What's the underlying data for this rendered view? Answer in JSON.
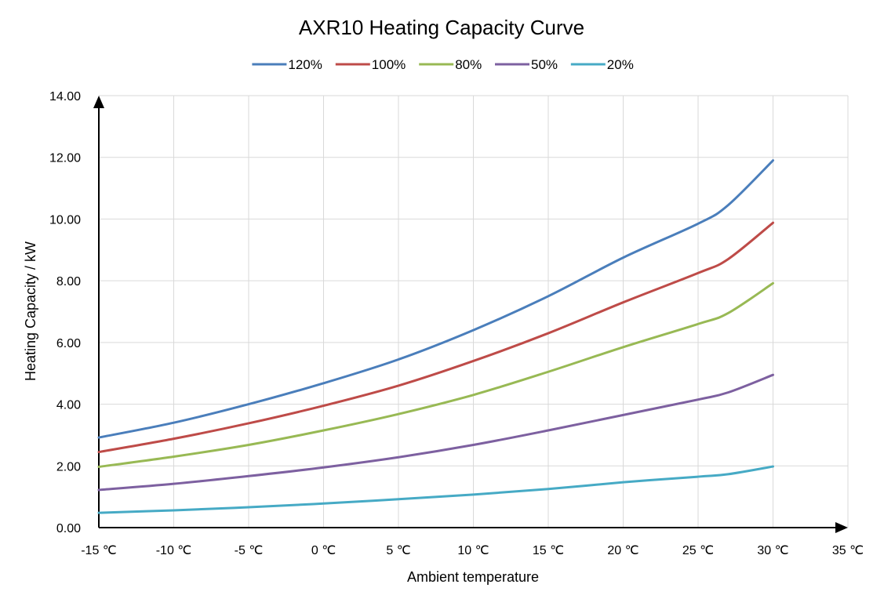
{
  "chart_data": {
    "type": "line",
    "title": "AXR10 Heating Capacity Curve",
    "xlabel": "Ambient temperature",
    "ylabel": "Heating Capacity / kW",
    "x_tick_labels": [
      "-15 ℃",
      "-10 ℃",
      "-5 ℃",
      "0 ℃",
      "5 ℃",
      "10 ℃",
      "15 ℃",
      "20 ℃",
      "25 ℃",
      "30 ℃",
      "35 ℃"
    ],
    "y_tick_labels": [
      "0.00",
      "2.00",
      "4.00",
      "6.00",
      "8.00",
      "10.00",
      "12.00",
      "14.00"
    ],
    "xlim": [
      -15,
      35
    ],
    "ylim": [
      0,
      14
    ],
    "grid": true,
    "legend_position": "top",
    "x": [
      -15,
      -10,
      -5,
      0,
      5,
      10,
      15,
      20,
      25,
      27,
      30
    ],
    "series": [
      {
        "name": "120%",
        "color": "#4a7ebb",
        "values": [
          2.92,
          3.4,
          4.0,
          4.68,
          5.45,
          6.4,
          7.5,
          8.75,
          9.85,
          10.45,
          11.9
        ]
      },
      {
        "name": "100%",
        "color": "#be4b48",
        "values": [
          2.45,
          2.88,
          3.38,
          3.95,
          4.6,
          5.4,
          6.3,
          7.3,
          8.25,
          8.7,
          9.88
        ]
      },
      {
        "name": "80%",
        "color": "#98b954",
        "values": [
          1.97,
          2.3,
          2.68,
          3.15,
          3.68,
          4.3,
          5.05,
          5.85,
          6.6,
          6.95,
          7.92
        ]
      },
      {
        "name": "50%",
        "color": "#7d60a0",
        "values": [
          1.22,
          1.42,
          1.67,
          1.95,
          2.28,
          2.68,
          3.15,
          3.65,
          4.15,
          4.38,
          4.95
        ]
      },
      {
        "name": "20%",
        "color": "#46aac5",
        "values": [
          0.48,
          0.56,
          0.66,
          0.78,
          0.92,
          1.07,
          1.25,
          1.47,
          1.65,
          1.73,
          1.98
        ]
      }
    ]
  }
}
